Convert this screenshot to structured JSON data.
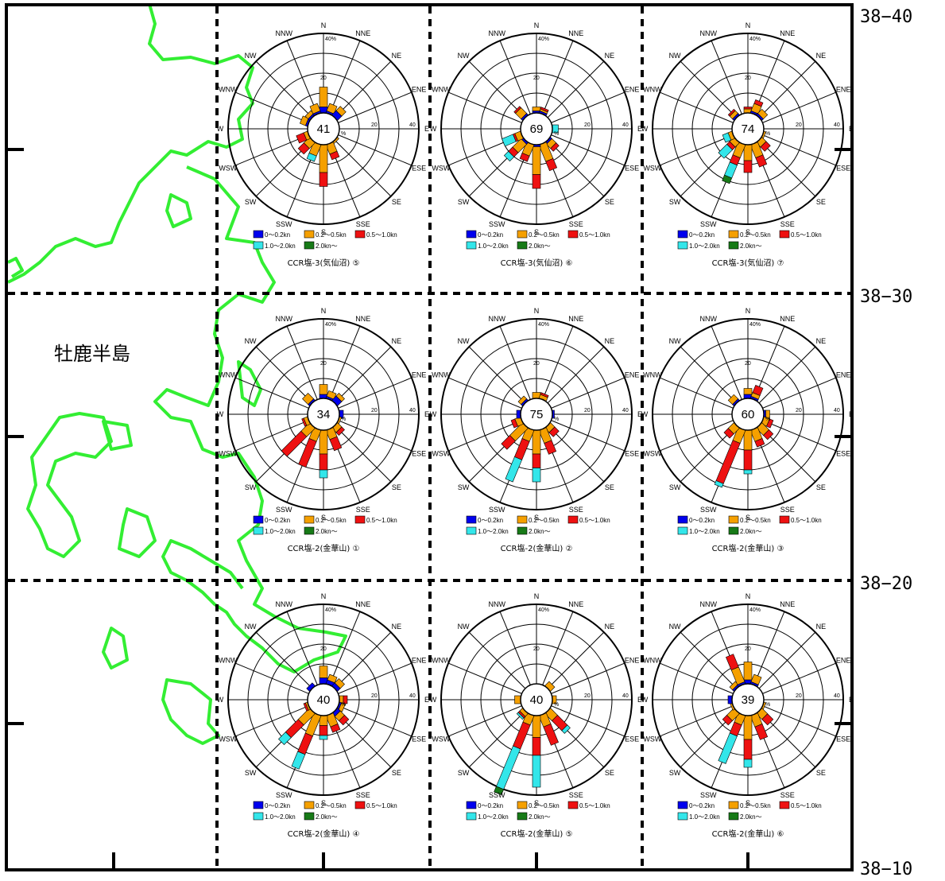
{
  "colors": {
    "coast": "#33ee33",
    "bins": [
      "#0000ee",
      "#f5a000",
      "#ee1111",
      "#33e6ea",
      "#177a17"
    ]
  },
  "map": {
    "place_name": "牡鹿半島",
    "lat_labels": [
      "38−40",
      "38−30",
      "38−20",
      "38−10"
    ]
  },
  "rose": {
    "directions": [
      "N",
      "NNE",
      "NE",
      "ENE",
      "E",
      "ESE",
      "SE",
      "SSE",
      "S",
      "SSW",
      "SW",
      "WSW",
      "W",
      "WNW",
      "NW",
      "NNW"
    ],
    "rings": [
      10,
      20,
      30,
      40
    ],
    "tick_label_top": "40%",
    "tick_label_20": "20",
    "tick_label_right40": "40",
    "percent_sign": "%",
    "legend": [
      "0〜0.2kn",
      "0.2〜0.5kn",
      "0.5〜1.0kn",
      "1.0〜2.0kn",
      "2.0kn〜"
    ]
  },
  "chart_data": [
    {
      "type": "windrose",
      "title": "CCR塩-3(気仙沼) ⑤",
      "center": "41",
      "dirs": {
        "N": [
          3,
          10,
          0,
          0,
          0
        ],
        "NNE": [
          1,
          4,
          0,
          0,
          0
        ],
        "NE": [
          3,
          3,
          0,
          0,
          0
        ],
        "WNW": [
          1,
          3,
          0,
          0,
          0
        ],
        "NNW": [
          1,
          4,
          0,
          0,
          0
        ],
        "NW": [
          1,
          2,
          0,
          0,
          0
        ],
        "SE": [
          0,
          1,
          0,
          0,
          0
        ],
        "SSE": [
          0,
          5,
          3,
          0,
          0
        ],
        "S": [
          0,
          14,
          7,
          0,
          0
        ],
        "SSW": [
          0,
          6,
          0,
          3,
          0
        ],
        "SW": [
          0,
          4,
          4,
          0,
          0
        ],
        "WSW": [
          0,
          2,
          4,
          0,
          0
        ]
      }
    },
    {
      "type": "windrose",
      "title": "CCR塩-3(気仙沼) ⑥",
      "center": "69",
      "dirs": {
        "N": [
          1,
          2,
          0,
          0,
          0
        ],
        "NNE": [
          1,
          1,
          1,
          0,
          0
        ],
        "NW": [
          1,
          4,
          1,
          0,
          0
        ],
        "E": [
          0,
          0,
          0,
          3,
          0
        ],
        "SE": [
          1,
          3,
          2,
          0,
          0
        ],
        "SSE": [
          0,
          9,
          5,
          0,
          0
        ],
        "S": [
          1,
          14,
          7,
          0,
          0
        ],
        "SSW": [
          0,
          6,
          3,
          0,
          0
        ],
        "SW": [
          1,
          6,
          3,
          3,
          0
        ],
        "WSW": [
          0,
          3,
          1,
          6,
          0
        ]
      }
    },
    {
      "type": "windrose",
      "title": "CCR塩-3(気仙沼) ⑦",
      "center": "74",
      "dirs": {
        "N": [
          0,
          2,
          1,
          0,
          0
        ],
        "NNE": [
          1,
          4,
          2,
          0,
          0
        ],
        "NE": [
          1,
          3,
          0,
          0,
          0
        ],
        "NW": [
          1,
          2,
          1,
          0,
          0
        ],
        "ESE": [
          0,
          1,
          0,
          0,
          0
        ],
        "SE": [
          0,
          3,
          3,
          0,
          0
        ],
        "SSE": [
          0,
          7,
          5,
          0,
          0
        ],
        "S": [
          0,
          8,
          6,
          0,
          0
        ],
        "SSW": [
          0,
          7,
          4,
          7,
          3
        ],
        "SW": [
          0,
          3,
          2,
          6,
          0
        ],
        "WSW": [
          0,
          2,
          0,
          3,
          0
        ]
      }
    },
    {
      "type": "windrose",
      "title": "CCR塩-2(金華山) ①",
      "center": "34",
      "dirs": {
        "N": [
          2,
          5,
          0,
          0,
          0
        ],
        "NNE": [
          1,
          3,
          0,
          0,
          0
        ],
        "NE": [
          3,
          2,
          0,
          0,
          0
        ],
        "NW": [
          1,
          4,
          0,
          0,
          0
        ],
        "E": [
          2,
          0,
          0,
          0,
          0
        ],
        "ESE": [
          0,
          1,
          0,
          0,
          0
        ],
        "SE": [
          0,
          3,
          2,
          0,
          0
        ],
        "SSE": [
          0,
          5,
          6,
          0,
          0
        ],
        "S": [
          0,
          12,
          8,
          4,
          0
        ],
        "SSW": [
          0,
          6,
          14,
          0,
          0
        ],
        "SW": [
          0,
          6,
          14,
          0,
          0
        ],
        "WSW": [
          0,
          2,
          1,
          0,
          0
        ]
      }
    },
    {
      "type": "windrose",
      "title": "CCR塩-2(金華山) ②",
      "center": "75",
      "dirs": {
        "N": [
          0,
          3,
          0,
          0,
          0
        ],
        "NNE": [
          0,
          2,
          1,
          0,
          0
        ],
        "NW": [
          1,
          2,
          0,
          0,
          0
        ],
        "W": [
          2,
          0,
          0,
          0,
          0
        ],
        "E": [
          1,
          0,
          0,
          0,
          0
        ],
        "SE": [
          0,
          3,
          3,
          0,
          0
        ],
        "SSE": [
          0,
          7,
          6,
          0,
          0
        ],
        "S": [
          0,
          12,
          7,
          7,
          0
        ],
        "SSW": [
          0,
          6,
          10,
          12,
          0
        ],
        "SW": [
          0,
          9,
          6,
          0,
          0
        ],
        "WSW": [
          0,
          3,
          2,
          0,
          0
        ]
      }
    },
    {
      "type": "windrose",
      "title": "CCR塩-2(金華山) ③",
      "center": "60",
      "dirs": {
        "N": [
          2,
          3,
          0,
          0,
          0
        ],
        "NNE": [
          1,
          2,
          4,
          0,
          0
        ],
        "NW": [
          1,
          3,
          0,
          0,
          0
        ],
        "E": [
          1,
          2,
          0,
          0,
          0
        ],
        "ESE": [
          0,
          3,
          2,
          0,
          0
        ],
        "SE": [
          0,
          5,
          3,
          0,
          0
        ],
        "SSE": [
          0,
          6,
          3,
          0,
          0
        ],
        "S": [
          0,
          10,
          10,
          2,
          0
        ],
        "SSW": [
          0,
          7,
          22,
          2,
          0
        ],
        "SW": [
          0,
          4,
          3,
          0,
          0
        ]
      }
    },
    {
      "type": "windrose",
      "title": "CCR塩-2(金華山) ④",
      "center": "40",
      "dirs": {
        "N": [
          3,
          6,
          0,
          0,
          0
        ],
        "NNE": [
          2,
          3,
          0,
          0,
          0
        ],
        "NE": [
          2,
          3,
          0,
          0,
          0
        ],
        "E": [
          0,
          2,
          2,
          0,
          0
        ],
        "ESE": [
          1,
          2,
          0,
          0,
          0
        ],
        "SE": [
          2,
          3,
          3,
          0,
          0
        ],
        "SSE": [
          0,
          6,
          3,
          0,
          0
        ],
        "S": [
          0,
          5,
          5,
          2,
          0
        ],
        "SSW": [
          0,
          11,
          10,
          8,
          0
        ],
        "SW": [
          0,
          8,
          9,
          5,
          0
        ],
        "WSW": [
          0,
          1,
          1,
          0,
          0
        ],
        "NW": [
          2,
          0,
          0,
          0,
          0
        ]
      }
    },
    {
      "type": "windrose",
      "title": "CCR塩-2(金華山) ⑤",
      "center": "40",
      "dirs": {
        "E": [
          0,
          2,
          0,
          0,
          0
        ],
        "NE": [
          0,
          3,
          0,
          0,
          0
        ],
        "W": [
          0,
          3,
          0,
          0,
          0
        ],
        "SE": [
          0,
          5,
          7,
          2,
          0
        ],
        "SSE": [
          0,
          6,
          10,
          0,
          0
        ],
        "S": [
          0,
          11,
          9,
          16,
          0
        ],
        "SSW": [
          0,
          5,
          13,
          22,
          3
        ],
        "SW": [
          0,
          2,
          1,
          1,
          0
        ]
      }
    },
    {
      "type": "windrose",
      "title": "CCR塩-2(金華山) ⑥",
      "center": "39",
      "dirs": {
        "N": [
          2,
          9,
          0,
          0,
          0
        ],
        "NNE": [
          1,
          4,
          0,
          0,
          0
        ],
        "NNW": [
          1,
          8,
          7,
          0,
          0
        ],
        "NW": [
          1,
          2,
          0,
          0,
          0
        ],
        "W": [
          2,
          0,
          0,
          0,
          0
        ],
        "ESE": [
          0,
          1,
          0,
          0,
          0
        ],
        "SE": [
          0,
          4,
          4,
          0,
          0
        ],
        "SSE": [
          0,
          6,
          7,
          0,
          0
        ],
        "S": [
          0,
          12,
          10,
          4,
          0
        ],
        "SSW": [
          0,
          5,
          6,
          15,
          0
        ],
        "SW": [
          0,
          5,
          3,
          0,
          0
        ],
        "WSW": [
          0,
          1,
          0,
          0,
          0
        ]
      }
    }
  ]
}
